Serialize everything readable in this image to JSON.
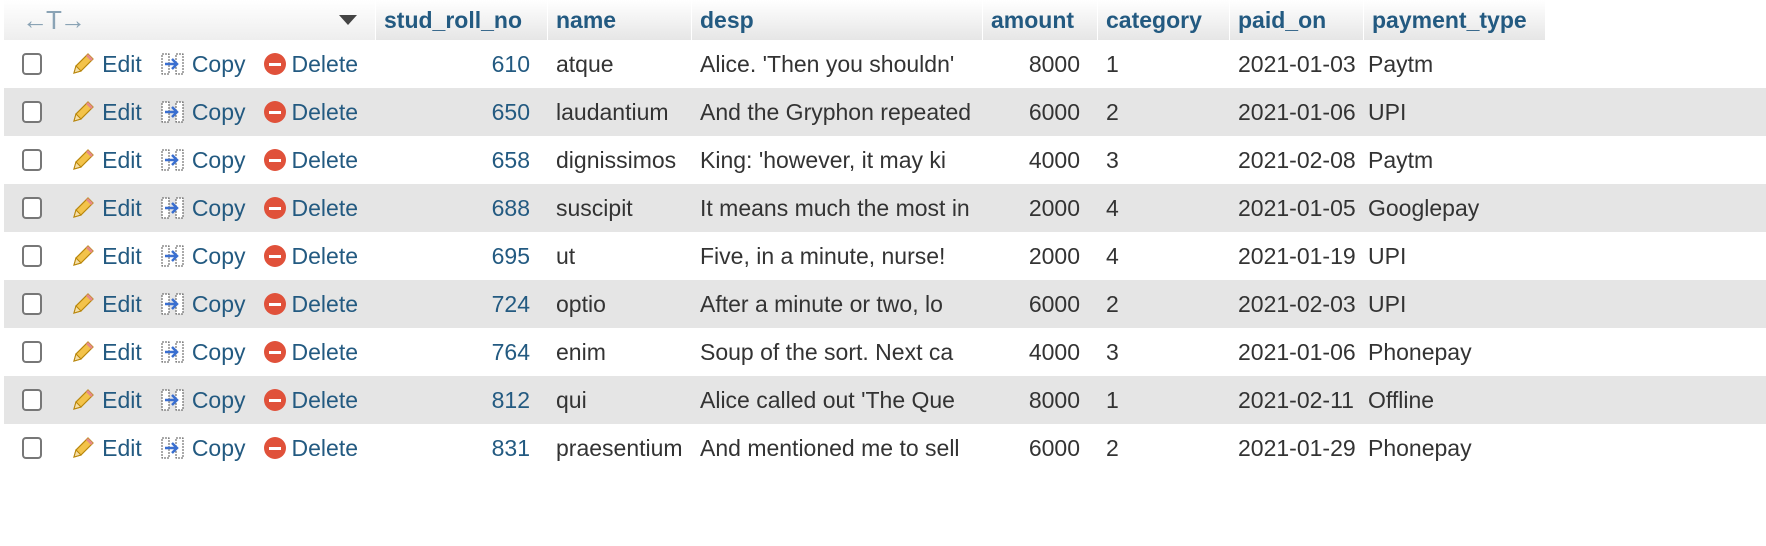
{
  "columns": {
    "stud_roll_no": "stud_roll_no",
    "name": "name",
    "desp": "desp",
    "amount": "amount",
    "category": "category",
    "paid_on": "paid_on",
    "payment_type": "payment_type"
  },
  "header_arrows": "←T→",
  "actions": {
    "edit": "Edit",
    "copy": "Copy",
    "delete": "Delete"
  },
  "rows": [
    {
      "stud_roll_no": "610",
      "name": "atque",
      "desp": "Alice. 'Then you shouldn'",
      "amount": "8000",
      "category": "1",
      "paid_on": "2021-01-03",
      "payment_type": "Paytm"
    },
    {
      "stud_roll_no": "650",
      "name": "laudantium",
      "desp": "And the Gryphon repeated",
      "amount": "6000",
      "category": "2",
      "paid_on": "2021-01-06",
      "payment_type": "UPI"
    },
    {
      "stud_roll_no": "658",
      "name": "dignissimos",
      "desp": "King: 'however, it may ki",
      "amount": "4000",
      "category": "3",
      "paid_on": "2021-02-08",
      "payment_type": "Paytm"
    },
    {
      "stud_roll_no": "688",
      "name": "suscipit",
      "desp": "It means much the most in",
      "amount": "2000",
      "category": "4",
      "paid_on": "2021-01-05",
      "payment_type": "Googlepay"
    },
    {
      "stud_roll_no": "695",
      "name": "ut",
      "desp": "Five, in a minute, nurse!",
      "amount": "2000",
      "category": "4",
      "paid_on": "2021-01-19",
      "payment_type": "UPI"
    },
    {
      "stud_roll_no": "724",
      "name": "optio",
      "desp": "After a minute or two, lo",
      "amount": "6000",
      "category": "2",
      "paid_on": "2021-02-03",
      "payment_type": "UPI"
    },
    {
      "stud_roll_no": "764",
      "name": "enim",
      "desp": "Soup of the sort. Next ca",
      "amount": "4000",
      "category": "3",
      "paid_on": "2021-01-06",
      "payment_type": "Phonepay"
    },
    {
      "stud_roll_no": "812",
      "name": "qui",
      "desp": "Alice called out 'The Que",
      "amount": "8000",
      "category": "1",
      "paid_on": "2021-02-11",
      "payment_type": "Offline"
    },
    {
      "stud_roll_no": "831",
      "name": "praesentium",
      "desp": "And mentioned me to sell",
      "amount": "6000",
      "category": "2",
      "paid_on": "2021-01-29",
      "payment_type": "Phonepay"
    }
  ],
  "colors": {
    "link": "#235a81",
    "row_alt": "#e5e5e5",
    "delete_icon": "#e0513a"
  },
  "icons": {
    "edit": "pencil-icon",
    "copy": "copy-icon",
    "delete": "delete-icon",
    "sort": "sort-desc-icon"
  }
}
